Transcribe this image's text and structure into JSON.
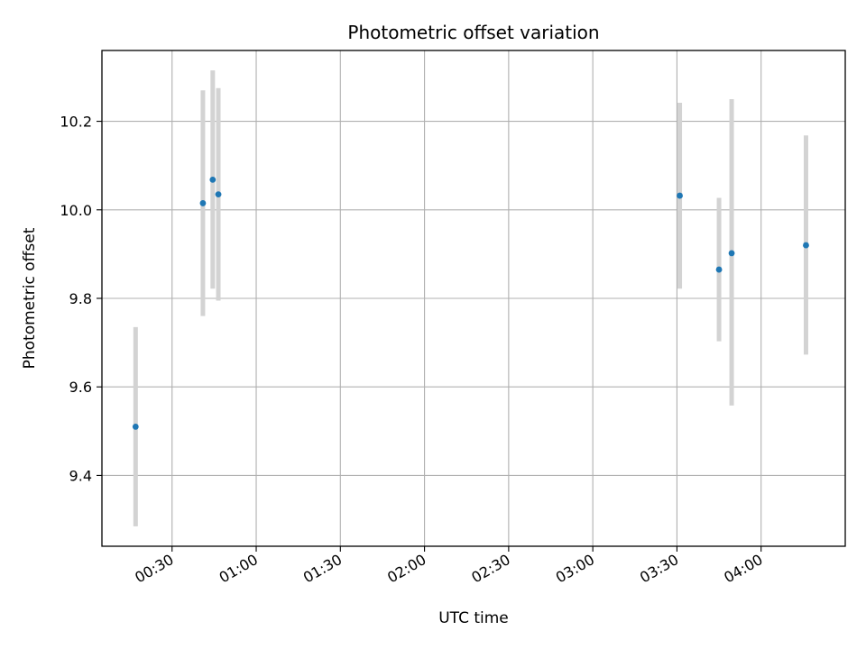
{
  "chart_data": {
    "type": "scatter",
    "title": "Photometric offset variation",
    "xlabel": "UTC time",
    "ylabel": "Photometric offset",
    "x_axis_type": "time",
    "xlim": [
      "00:05",
      "04:30"
    ],
    "ylim": [
      9.24,
      10.36
    ],
    "x_ticks": [
      "00:30",
      "01:00",
      "01:30",
      "02:00",
      "02:30",
      "03:00",
      "03:30",
      "04:00"
    ],
    "y_ticks": [
      9.4,
      9.6,
      9.8,
      10.0,
      10.2
    ],
    "grid": true,
    "point_color": "#1f77b4",
    "errorbar_color": "#d3d3d3",
    "points": [
      {
        "x": "00:17",
        "y": 9.51,
        "ylow": 9.285,
        "yhigh": 9.735
      },
      {
        "x": "00:41",
        "y": 10.015,
        "ylow": 9.76,
        "yhigh": 10.27
      },
      {
        "x": "00:44.5",
        "y": 10.068,
        "ylow": 9.822,
        "yhigh": 10.315
      },
      {
        "x": "00:46.5",
        "y": 10.035,
        "ylow": 9.795,
        "yhigh": 10.275
      },
      {
        "x": "03:31",
        "y": 10.032,
        "ylow": 9.822,
        "yhigh": 10.242
      },
      {
        "x": "03:45",
        "y": 9.865,
        "ylow": 9.703,
        "yhigh": 10.027
      },
      {
        "x": "03:49.5",
        "y": 9.902,
        "ylow": 9.558,
        "yhigh": 10.25
      },
      {
        "x": "04:16",
        "y": 9.92,
        "ylow": 9.673,
        "yhigh": 10.168
      }
    ]
  }
}
